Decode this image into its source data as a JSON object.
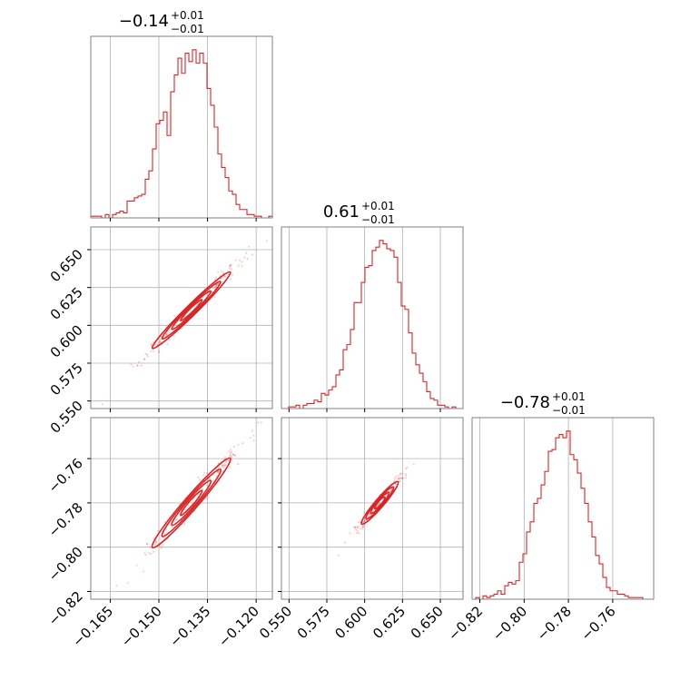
{
  "chart_data": {
    "type": "corner",
    "color": "#d62728",
    "parameters": [
      {
        "median": -0.14,
        "title_value": "−0.14",
        "upper_err": "+0.01",
        "lower_err": "−0.01",
        "range": [
          -0.171,
          -0.115
        ],
        "hist_ylim": [
          0,
          1.08
        ],
        "ticks": [
          -0.165,
          -0.15,
          -0.135,
          -0.12
        ],
        "tick_labels": [
          "−0.165",
          "−0.150",
          "−0.135",
          "−0.120"
        ],
        "hist": [
          0.01,
          0.01,
          0.01,
          0.0,
          0.02,
          0.0,
          0.02,
          0.03,
          0.04,
          0.03,
          0.1,
          0.1,
          0.12,
          0.13,
          0.14,
          0.23,
          0.28,
          0.41,
          0.56,
          0.58,
          0.63,
          0.49,
          0.75,
          0.85,
          0.95,
          0.86,
          0.98,
          0.93,
          1.0,
          0.92,
          0.98,
          0.92,
          0.77,
          0.67,
          0.54,
          0.38,
          0.3,
          0.24,
          0.16,
          0.14,
          0.08,
          0.05,
          0.05,
          0.02,
          0.02,
          0.01,
          0.01,
          0.0,
          0.0,
          0.01
        ]
      },
      {
        "median": 0.61,
        "title_value": "0.61",
        "upper_err": "+0.01",
        "lower_err": "−0.01",
        "range": [
          0.545,
          0.665
        ],
        "hist_ylim": [
          0,
          1.08
        ],
        "ticks": [
          0.55,
          0.575,
          0.6,
          0.625,
          0.65
        ],
        "tick_labels": [
          "0.550",
          "0.575",
          "0.600",
          "0.625",
          "0.650"
        ],
        "tick_labels_y": [
          "0.550",
          "0.575",
          "0.600",
          "0.625",
          "0.650"
        ],
        "hist": [
          0.0,
          0.0,
          0.01,
          0.01,
          0.02,
          0.0,
          0.02,
          0.03,
          0.03,
          0.05,
          0.04,
          0.09,
          0.08,
          0.11,
          0.13,
          0.2,
          0.23,
          0.35,
          0.38,
          0.47,
          0.63,
          0.63,
          0.75,
          0.84,
          0.85,
          0.94,
          0.96,
          1.0,
          0.98,
          0.95,
          0.94,
          0.9,
          0.75,
          0.61,
          0.59,
          0.45,
          0.33,
          0.26,
          0.21,
          0.16,
          0.1,
          0.06,
          0.05,
          0.02,
          0.02,
          0.01,
          0.0,
          0.01,
          0.0,
          0.0
        ]
      },
      {
        "median": -0.78,
        "title_value": "−0.78",
        "upper_err": "+0.01",
        "lower_err": "−0.01",
        "range": [
          -0.8235,
          -0.7415
        ],
        "hist_ylim": [
          0,
          1.08
        ],
        "ticks": [
          -0.82,
          -0.8,
          -0.78,
          -0.76
        ],
        "tick_labels": [
          "−0.82",
          "−0.80",
          "−0.78",
          "−0.76"
        ],
        "tick_labels_y": [
          "−0.82",
          "−0.80",
          "−0.78",
          "−0.76"
        ],
        "hist": [
          0.0,
          0.01,
          0.0,
          0.02,
          0.01,
          0.02,
          0.03,
          0.05,
          0.03,
          0.08,
          0.1,
          0.09,
          0.11,
          0.22,
          0.27,
          0.4,
          0.46,
          0.57,
          0.6,
          0.68,
          0.76,
          0.88,
          0.89,
          0.96,
          0.98,
          0.96,
          1.0,
          0.86,
          0.83,
          0.75,
          0.66,
          0.57,
          0.46,
          0.37,
          0.26,
          0.21,
          0.13,
          0.07,
          0.05,
          0.05,
          0.03,
          0.03,
          0.02,
          0.01,
          0.01,
          0.01,
          0.01,
          0.0,
          0.0,
          0.0
        ]
      }
    ],
    "correlations": {
      "p1_vs_p0": {
        "slope": 2.1,
        "intercept": 0.904,
        "width": 0.0032
      },
      "p2_vs_p0": {
        "slope": 1.68,
        "intercept": -0.5448,
        "width": 0.0028
      },
      "p2_vs_p1": {
        "slope": 0.8,
        "intercept": -1.268,
        "width": 0.0018
      }
    },
    "grid": true
  }
}
